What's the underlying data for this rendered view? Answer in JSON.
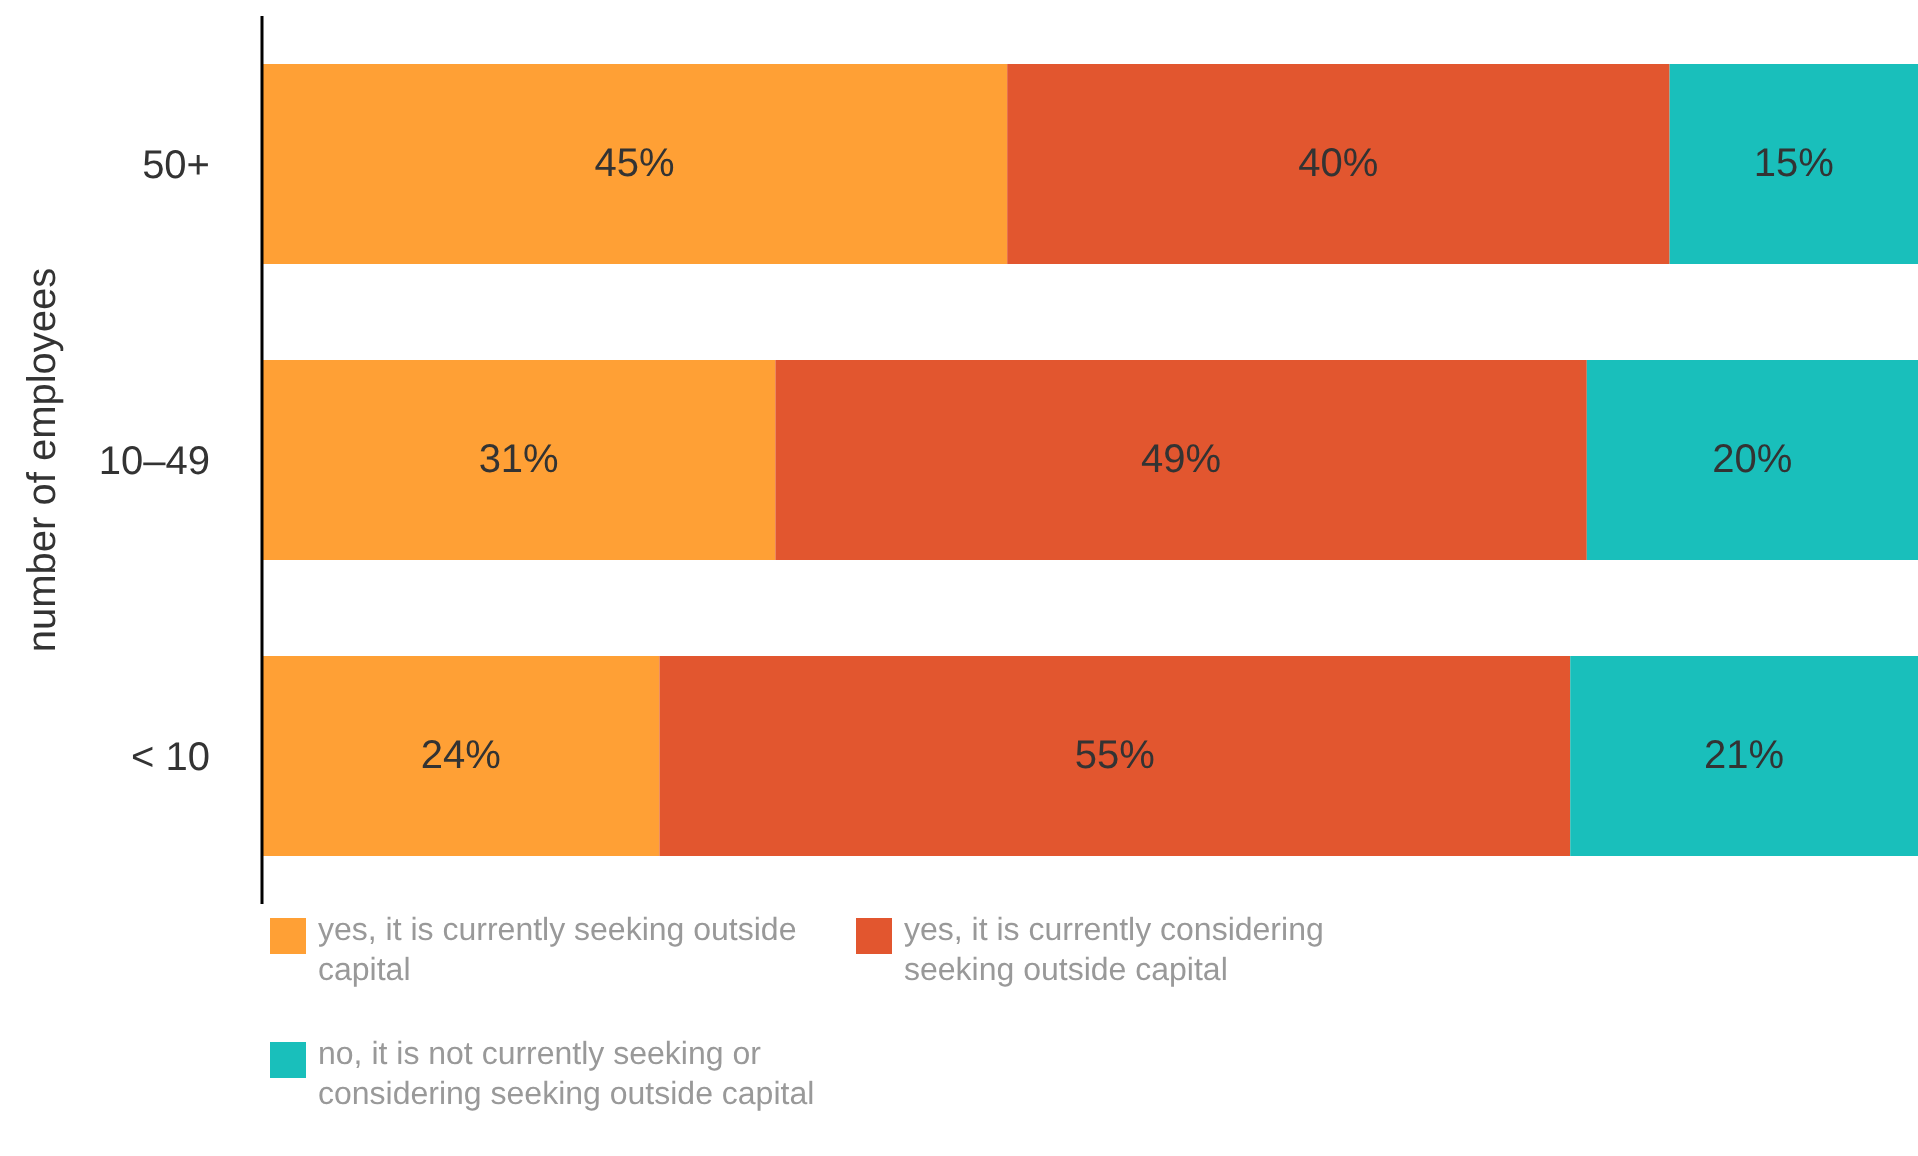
{
  "chart_data": {
    "type": "bar",
    "orientation": "horizontal",
    "stacked": true,
    "ylabel": "number of employees",
    "categories": [
      "50+",
      "10–49",
      "< 10"
    ],
    "legend": "bottom",
    "series": [
      {
        "name": "yes, it is currently seeking outside capital",
        "color": "#ffa035",
        "values": [
          45,
          31,
          24
        ],
        "value_labels": [
          "45%",
          "31%",
          "24%"
        ]
      },
      {
        "name": "yes, it is currently considering seeking outside capital",
        "color": "#e2562f",
        "values": [
          40,
          49,
          55
        ],
        "value_labels": [
          "40%",
          "49%",
          "55%"
        ]
      },
      {
        "name": "no, it is not currently seeking or considering seeking outside capital",
        "color": "#19bfbb",
        "values": [
          15,
          20,
          21
        ],
        "value_labels": [
          "15%",
          "20%",
          "21%"
        ]
      }
    ]
  }
}
